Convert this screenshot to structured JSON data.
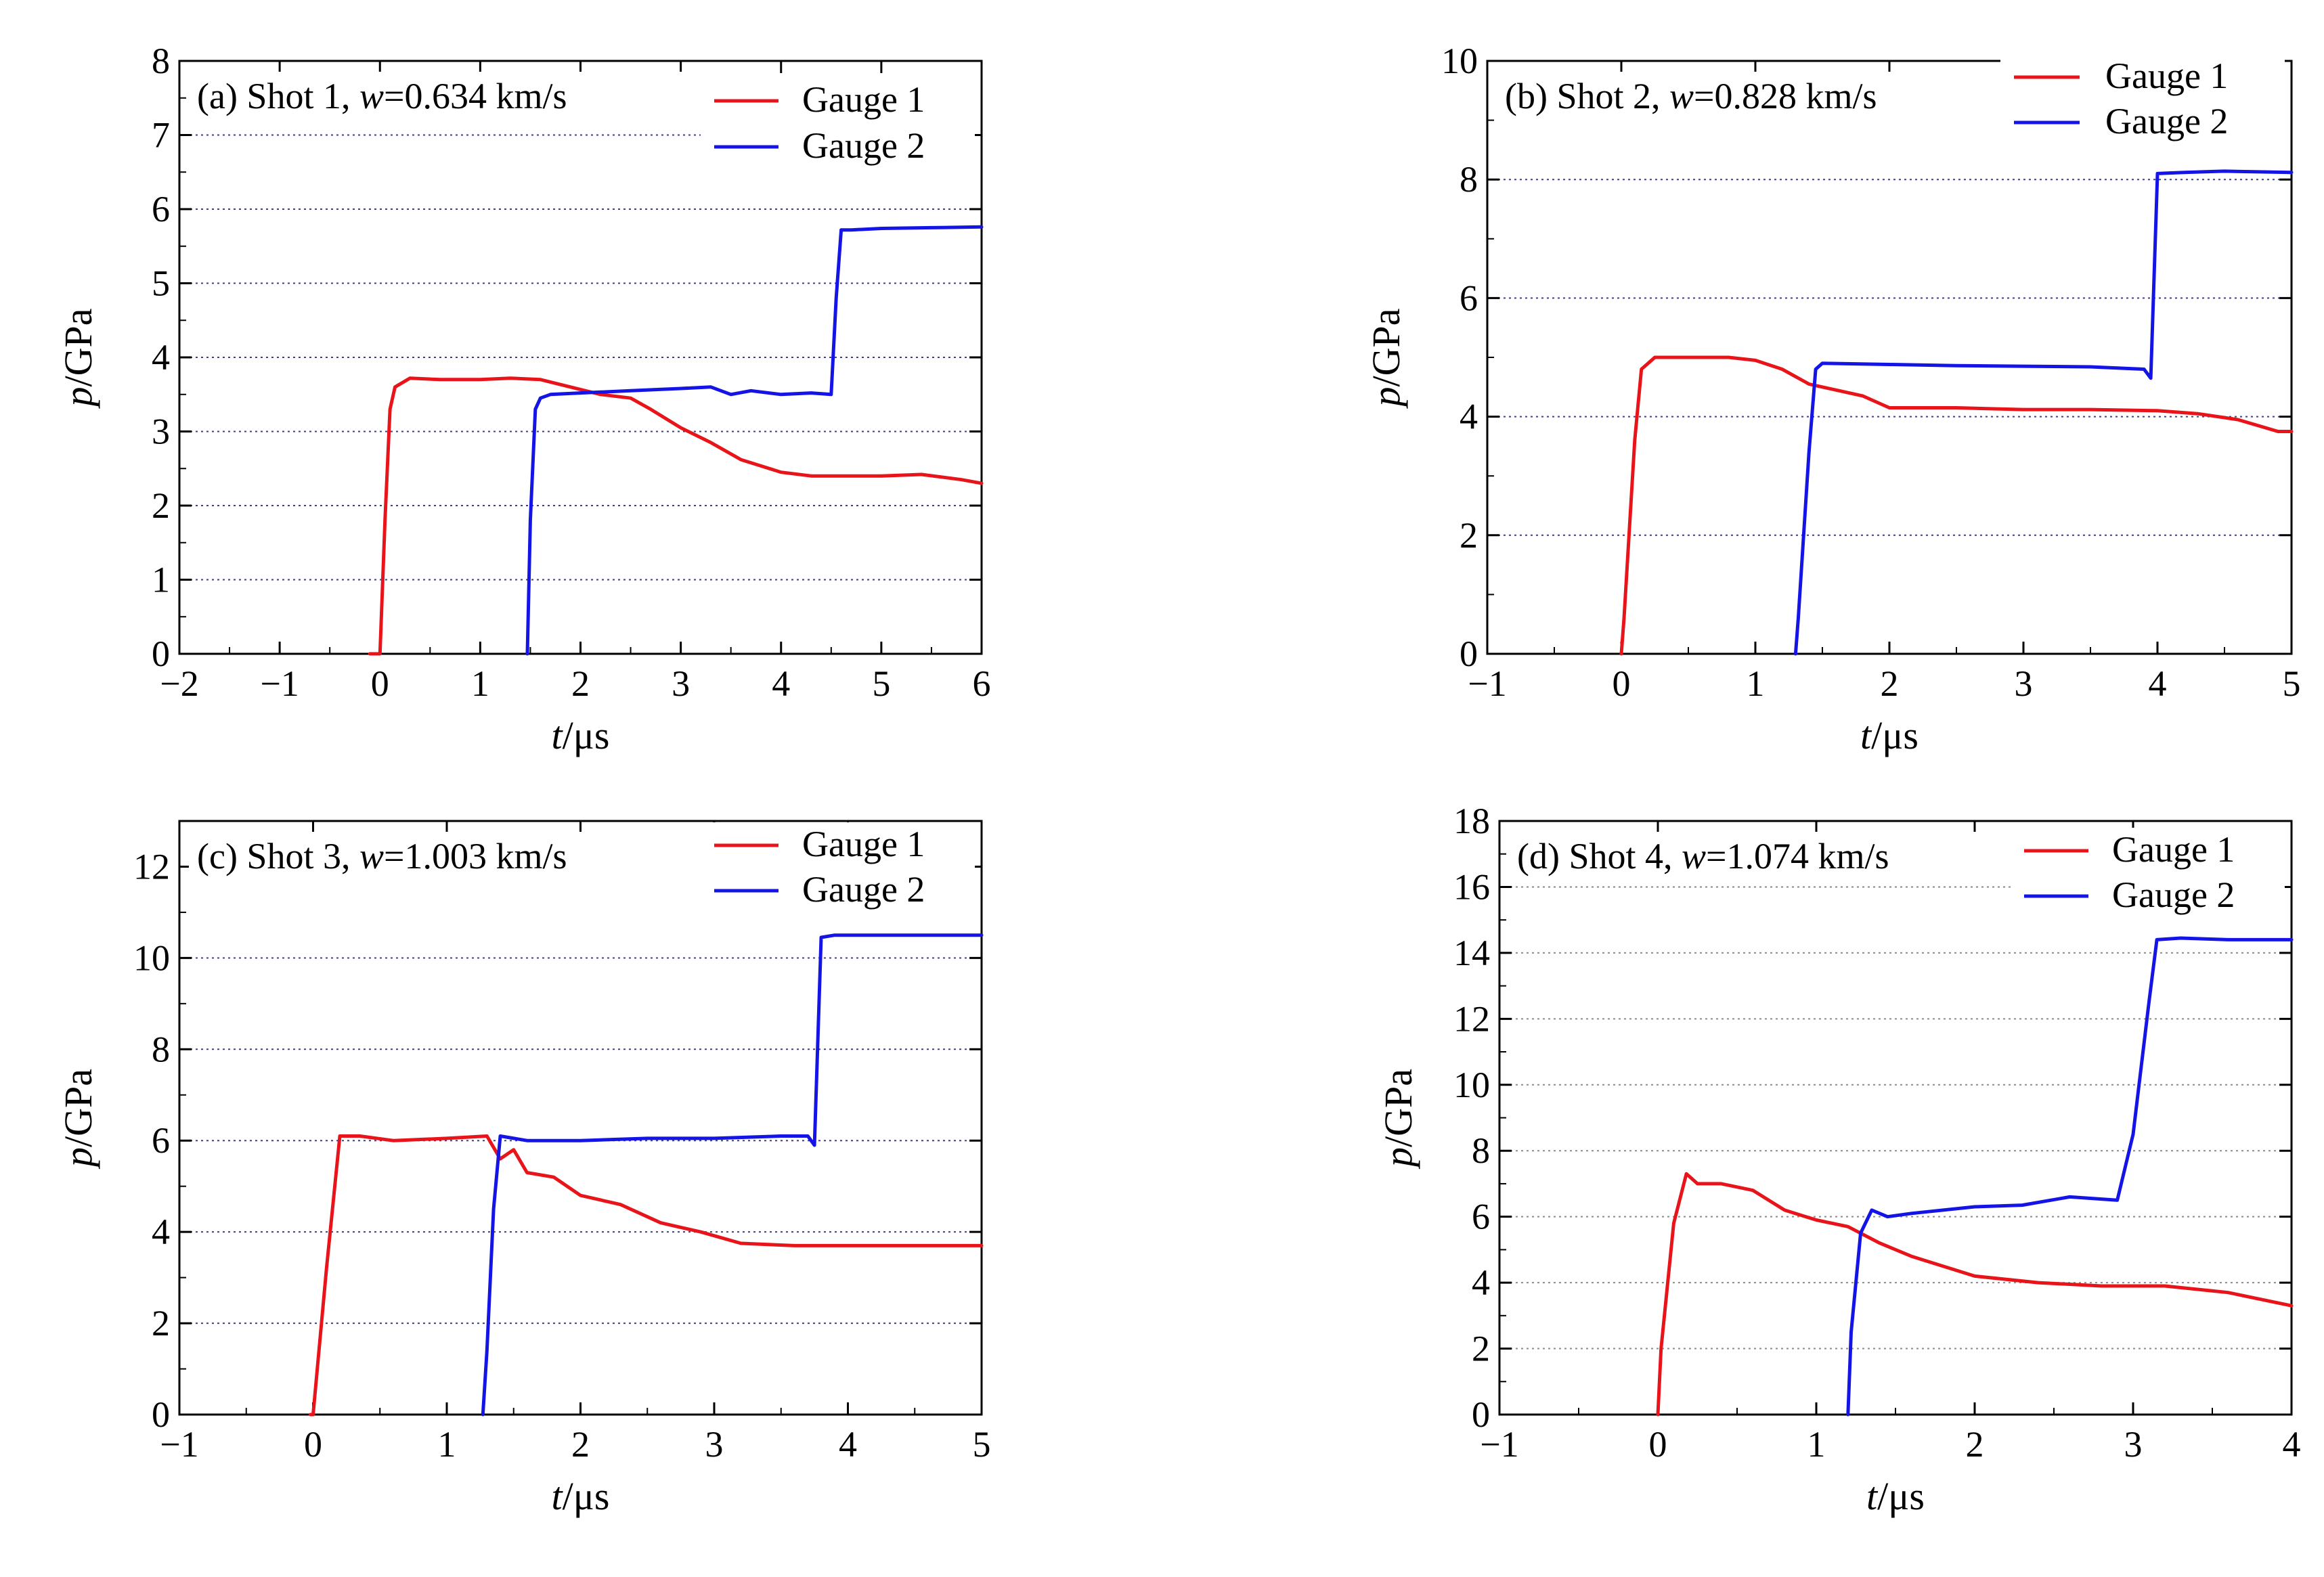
{
  "figure": {
    "legend_labels": [
      "Gauge 1",
      "Gauge 2"
    ],
    "colors": {
      "gauge1": "#e8141a",
      "gauge2": "#1414e6",
      "grid": "#3a3aa8",
      "grid_gray": "#8a8a8a"
    }
  },
  "chart_data": [
    {
      "type": "line",
      "panel": "a",
      "title_prefix": "(a) Shot 1, ",
      "title_var": "w",
      "title_suffix": "=0.634 km/s",
      "xlabel_var": "t",
      "xlabel_unit": "/μs",
      "ylabel_var": "p",
      "ylabel_unit": "/GPa",
      "xlim": [
        -2,
        6
      ],
      "ylim": [
        0,
        8
      ],
      "xticks": [
        -2,
        -1,
        0,
        1,
        2,
        3,
        4,
        5,
        6
      ],
      "xtick_labels": [
        "−2",
        "−1",
        "0",
        "1",
        "2",
        "3",
        "4",
        "5",
        "6"
      ],
      "yticks": [
        0,
        1,
        2,
        3,
        4,
        5,
        6,
        7,
        8
      ],
      "ytick_labels": [
        "0",
        "1",
        "2",
        "3",
        "4",
        "5",
        "6",
        "7",
        "8"
      ],
      "grid_y": [
        1,
        2,
        3,
        4,
        5,
        6,
        7
      ],
      "grid_style": "dotted-blue",
      "legend_position": "top-right",
      "series": [
        {
          "name": "Gauge 1",
          "x": [
            -0.1,
            0.0,
            0.05,
            0.1,
            0.15,
            0.3,
            0.6,
            1.0,
            1.3,
            1.6,
            1.9,
            2.2,
            2.5,
            2.7,
            3.0,
            3.3,
            3.6,
            4.0,
            4.3,
            4.7,
            5.0,
            5.4,
            5.8,
            6.0
          ],
          "y": [
            0,
            0,
            1.8,
            3.3,
            3.6,
            3.72,
            3.7,
            3.7,
            3.72,
            3.7,
            3.6,
            3.5,
            3.45,
            3.3,
            3.05,
            2.85,
            2.62,
            2.45,
            2.4,
            2.4,
            2.4,
            2.42,
            2.35,
            2.3
          ]
        },
        {
          "name": "Gauge 2",
          "x": [
            1.47,
            1.5,
            1.55,
            1.6,
            1.7,
            2.0,
            2.5,
            3.0,
            3.3,
            3.5,
            3.7,
            4.0,
            4.3,
            4.5,
            4.55,
            4.6,
            4.7,
            5.0,
            5.5,
            6.0
          ],
          "y": [
            0,
            1.8,
            3.3,
            3.45,
            3.5,
            3.52,
            3.55,
            3.58,
            3.6,
            3.5,
            3.55,
            3.5,
            3.52,
            3.5,
            4.8,
            5.72,
            5.72,
            5.74,
            5.75,
            5.76
          ]
        }
      ]
    },
    {
      "type": "line",
      "panel": "b",
      "title_prefix": "(b) Shot 2, ",
      "title_var": "w",
      "title_suffix": "=0.828 km/s",
      "xlabel_var": "t",
      "xlabel_unit": "/μs",
      "ylabel_var": "p",
      "ylabel_unit": "/GPa",
      "xlim": [
        -1,
        5
      ],
      "ylim": [
        0,
        10
      ],
      "xticks": [
        -1,
        0,
        1,
        2,
        3,
        4,
        5
      ],
      "xtick_labels": [
        "−1",
        "0",
        "1",
        "2",
        "3",
        "4",
        "5"
      ],
      "yticks": [
        0,
        2,
        4,
        6,
        8,
        10
      ],
      "ytick_labels": [
        "0",
        "2",
        "4",
        "6",
        "8",
        "10"
      ],
      "grid_y": [
        2,
        4,
        6,
        8
      ],
      "grid_style": "dotted-blue",
      "legend_position": "top-right",
      "series": [
        {
          "name": "Gauge 1",
          "x": [
            0.0,
            0.02,
            0.1,
            0.15,
            0.25,
            0.5,
            0.8,
            1.0,
            1.2,
            1.4,
            1.6,
            1.8,
            2.0,
            2.5,
            3.0,
            3.5,
            4.0,
            4.3,
            4.6,
            4.9,
            5.0
          ],
          "y": [
            0,
            0.6,
            3.6,
            4.8,
            5.0,
            5.0,
            5.0,
            4.95,
            4.8,
            4.55,
            4.45,
            4.35,
            4.15,
            4.15,
            4.12,
            4.12,
            4.1,
            4.05,
            3.95,
            3.75,
            3.75
          ]
        },
        {
          "name": "Gauge 2",
          "x": [
            1.3,
            1.32,
            1.4,
            1.45,
            1.5,
            2.0,
            2.5,
            3.0,
            3.5,
            3.9,
            3.95,
            4.0,
            4.2,
            4.5,
            5.0
          ],
          "y": [
            0,
            0.6,
            3.4,
            4.8,
            4.9,
            4.88,
            4.86,
            4.85,
            4.84,
            4.8,
            4.65,
            8.1,
            8.12,
            8.14,
            8.12
          ]
        }
      ]
    },
    {
      "type": "line",
      "panel": "c",
      "title_prefix": "(c) Shot 3, ",
      "title_var": "w",
      "title_suffix": "=1.003 km/s",
      "xlabel_var": "t",
      "xlabel_unit": "/μs",
      "ylabel_var": "p",
      "ylabel_unit": "/GPa",
      "xlim": [
        -1,
        5
      ],
      "ylim": [
        0,
        13
      ],
      "xticks": [
        -1,
        0,
        1,
        2,
        3,
        4,
        5
      ],
      "xtick_labels": [
        "−1",
        "0",
        "1",
        "2",
        "3",
        "4",
        "5"
      ],
      "yticks": [
        0,
        2,
        4,
        6,
        8,
        10,
        12
      ],
      "ytick_labels": [
        "0",
        "2",
        "4",
        "6",
        "8",
        "10",
        "12"
      ],
      "grid_y": [
        2,
        4,
        6,
        8,
        10
      ],
      "grid_style": "dotted-blue",
      "legend_position": "top-right",
      "series": [
        {
          "name": "Gauge 1",
          "x": [
            -0.02,
            0.0,
            0.1,
            0.2,
            0.35,
            0.6,
            1.0,
            1.3,
            1.4,
            1.5,
            1.6,
            1.8,
            2.0,
            2.3,
            2.6,
            2.9,
            3.2,
            3.6,
            4.0,
            4.5,
            5.0
          ],
          "y": [
            0,
            0,
            3.2,
            6.1,
            6.1,
            6.0,
            6.05,
            6.1,
            5.6,
            5.8,
            5.3,
            5.2,
            4.8,
            4.6,
            4.2,
            4.0,
            3.75,
            3.7,
            3.7,
            3.7,
            3.7
          ]
        },
        {
          "name": "Gauge 2",
          "x": [
            1.27,
            1.3,
            1.35,
            1.4,
            1.6,
            2.0,
            2.5,
            3.0,
            3.5,
            3.7,
            3.75,
            3.8,
            3.9,
            4.5,
            5.0
          ],
          "y": [
            0,
            1.4,
            4.5,
            6.1,
            6.0,
            6.0,
            6.05,
            6.05,
            6.1,
            6.1,
            5.9,
            10.45,
            10.5,
            10.5,
            10.5
          ]
        }
      ]
    },
    {
      "type": "line",
      "panel": "d",
      "title_prefix": "(d) Shot 4, ",
      "title_var": "w",
      "title_suffix": "=1.074 km/s",
      "xlabel_var": "t",
      "xlabel_unit": "/μs",
      "ylabel_var": "p",
      "ylabel_unit": "/GPa",
      "xlim": [
        -1,
        4
      ],
      "ylim": [
        0,
        18
      ],
      "xticks": [
        -1,
        0,
        1,
        2,
        3,
        4
      ],
      "xtick_labels": [
        "−1",
        "0",
        "1",
        "2",
        "3",
        "4"
      ],
      "yticks": [
        0,
        2,
        4,
        6,
        8,
        10,
        12,
        14,
        16,
        18
      ],
      "ytick_labels": [
        "0",
        "2",
        "4",
        "6",
        "8",
        "10",
        "12",
        "14",
        "16",
        "18"
      ],
      "grid_y": [
        2,
        4,
        6,
        8,
        10,
        12,
        14,
        16
      ],
      "grid_style": "dotted-gray",
      "legend_position": "top-right",
      "series": [
        {
          "name": "Gauge 1",
          "x": [
            0.0,
            0.02,
            0.1,
            0.18,
            0.25,
            0.4,
            0.6,
            0.8,
            1.0,
            1.2,
            1.4,
            1.6,
            2.0,
            2.4,
            2.8,
            3.2,
            3.6,
            4.0
          ],
          "y": [
            0,
            2.0,
            5.8,
            7.3,
            7.0,
            7.0,
            6.8,
            6.2,
            5.9,
            5.7,
            5.2,
            4.8,
            4.2,
            4.0,
            3.9,
            3.9,
            3.7,
            3.3
          ]
        },
        {
          "name": "Gauge 2",
          "x": [
            1.2,
            1.22,
            1.28,
            1.35,
            1.45,
            1.6,
            2.0,
            2.3,
            2.6,
            2.9,
            3.0,
            3.1,
            3.15,
            3.3,
            3.6,
            4.0
          ],
          "y": [
            0,
            2.5,
            5.5,
            6.2,
            6.0,
            6.1,
            6.3,
            6.35,
            6.6,
            6.5,
            8.5,
            12.5,
            14.4,
            14.45,
            14.4,
            14.4
          ]
        }
      ]
    }
  ]
}
